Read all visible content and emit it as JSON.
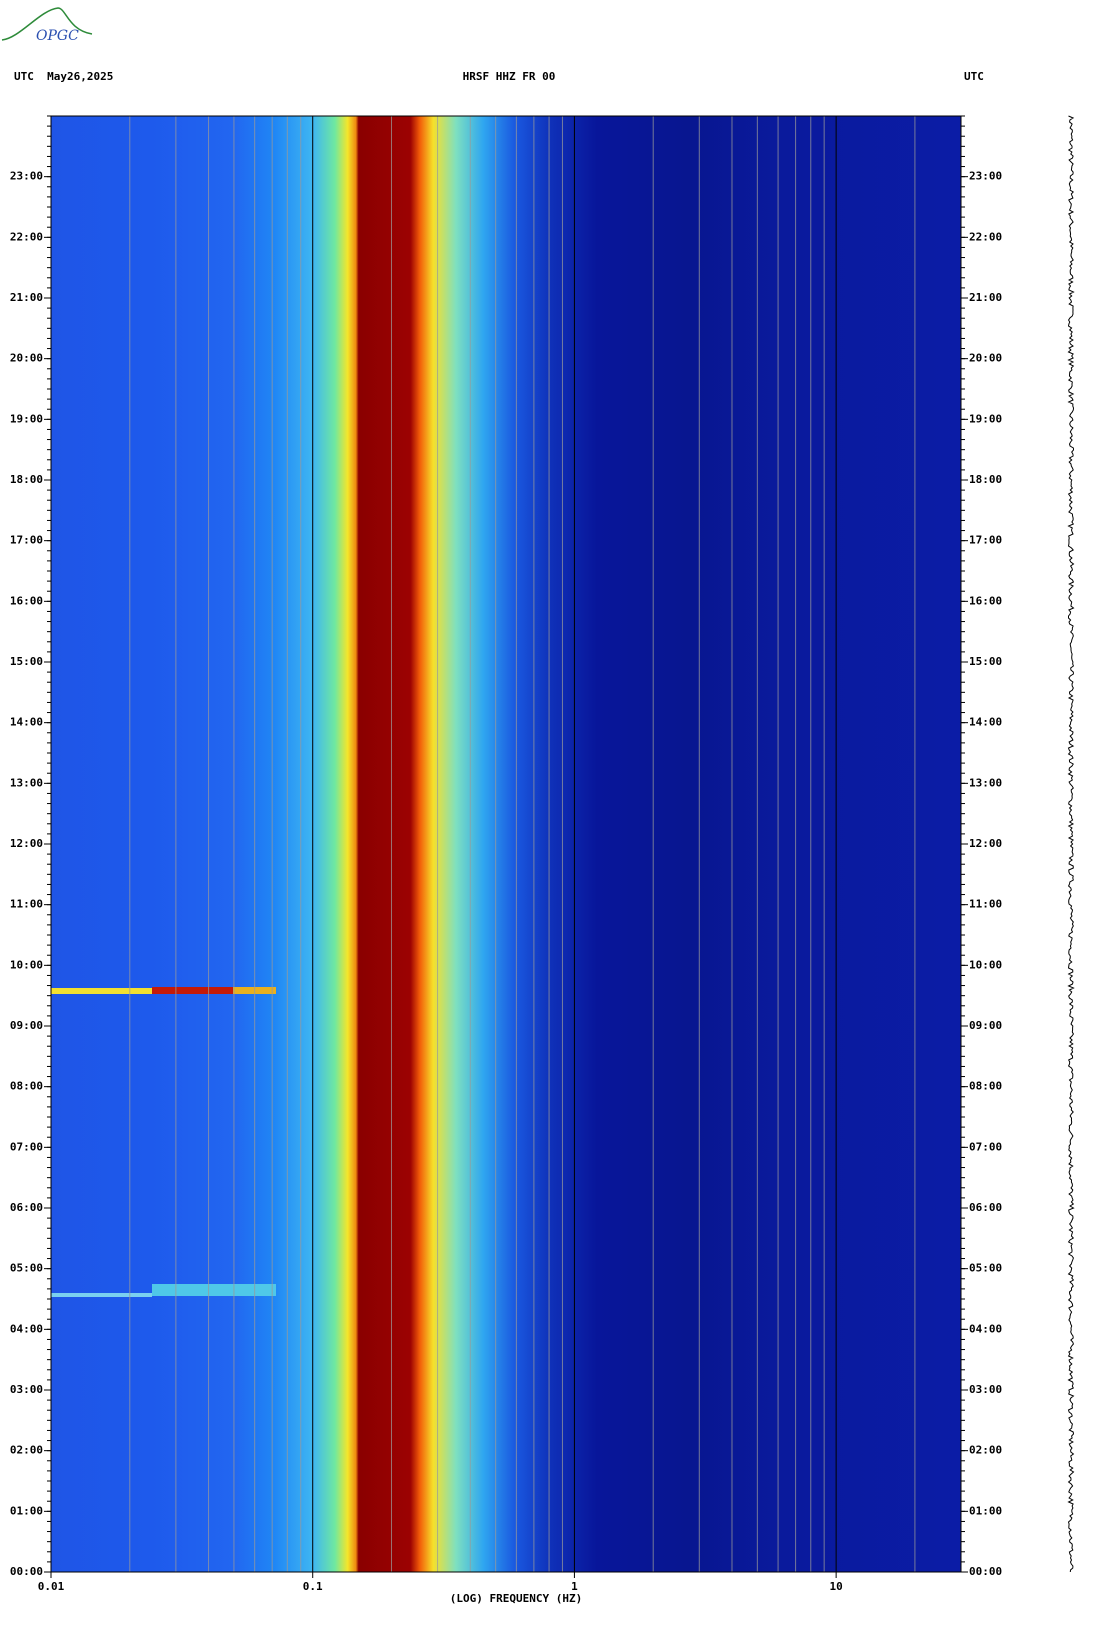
{
  "logo": "OPGC",
  "chart_data": {
    "type": "spectrogram",
    "title_left": "UTC  May26,2025",
    "title": "HRSF HHZ FR 00",
    "title_right": "UTC",
    "x_label": "(LOG) FREQUENCY (HZ)",
    "x_log": true,
    "xlim": [
      0.01,
      30
    ],
    "xticks": [
      {
        "value": 0.01,
        "label": "0.01"
      },
      {
        "value": 0.1,
        "label": "0.1"
      },
      1,
      10
    ],
    "ylim": [
      0,
      24
    ],
    "yticks": [
      {
        "value": 0,
        "label": "00:00"
      },
      {
        "value": 1,
        "label": "01:00"
      },
      {
        "value": 2,
        "label": "02:00"
      },
      {
        "value": 3,
        "label": "03:00"
      },
      {
        "value": 4,
        "label": "04:00"
      },
      {
        "value": 5,
        "label": "05:00"
      },
      {
        "value": 6,
        "label": "06:00"
      },
      {
        "value": 7,
        "label": "07:00"
      },
      {
        "value": 8,
        "label": "08:00"
      },
      {
        "value": 9,
        "label": "09:00"
      },
      {
        "value": 10,
        "label": "10:00"
      },
      {
        "value": 11,
        "label": "11:00"
      },
      {
        "value": 12,
        "label": "12:00"
      },
      {
        "value": 13,
        "label": "13:00"
      },
      {
        "value": 14,
        "label": "14:00"
      },
      {
        "value": 15,
        "label": "15:00"
      },
      {
        "value": 16,
        "label": "16:00"
      },
      {
        "value": 17,
        "label": "17:00"
      },
      {
        "value": 18,
        "label": "18:00"
      },
      {
        "value": 19,
        "label": "19:00"
      },
      {
        "value": 20,
        "label": "20:00"
      },
      {
        "value": 21,
        "label": "21:00"
      },
      {
        "value": 22,
        "label": "22:00"
      },
      {
        "value": 23,
        "label": "23:00"
      }
    ],
    "grid": true
  }
}
